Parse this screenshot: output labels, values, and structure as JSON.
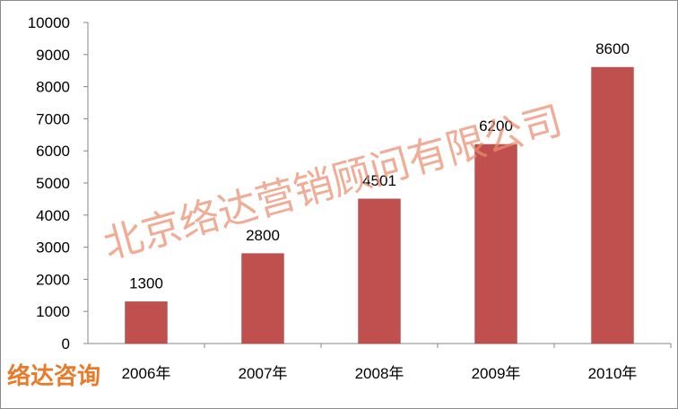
{
  "chart_data": {
    "type": "bar",
    "categories": [
      "2006年",
      "2007年",
      "2008年",
      "2009年",
      "2010年"
    ],
    "values": [
      1300,
      2800,
      4501,
      6200,
      8600
    ],
    "title": "",
    "xlabel": "",
    "ylabel": "",
    "ylim": [
      0,
      10000
    ],
    "yticks": [
      0,
      1000,
      2000,
      3000,
      4000,
      5000,
      6000,
      7000,
      8000,
      9000,
      10000
    ],
    "grid": false,
    "legend": "none",
    "bar_color": "#c0504d",
    "axis_color": "#868686",
    "data_labels": true
  },
  "watermark": {
    "text": "北京络达营销顾问有限公司",
    "color": "#ec8c6e"
  },
  "brand": {
    "text": "络达咨询",
    "color": "#e87a2a"
  }
}
